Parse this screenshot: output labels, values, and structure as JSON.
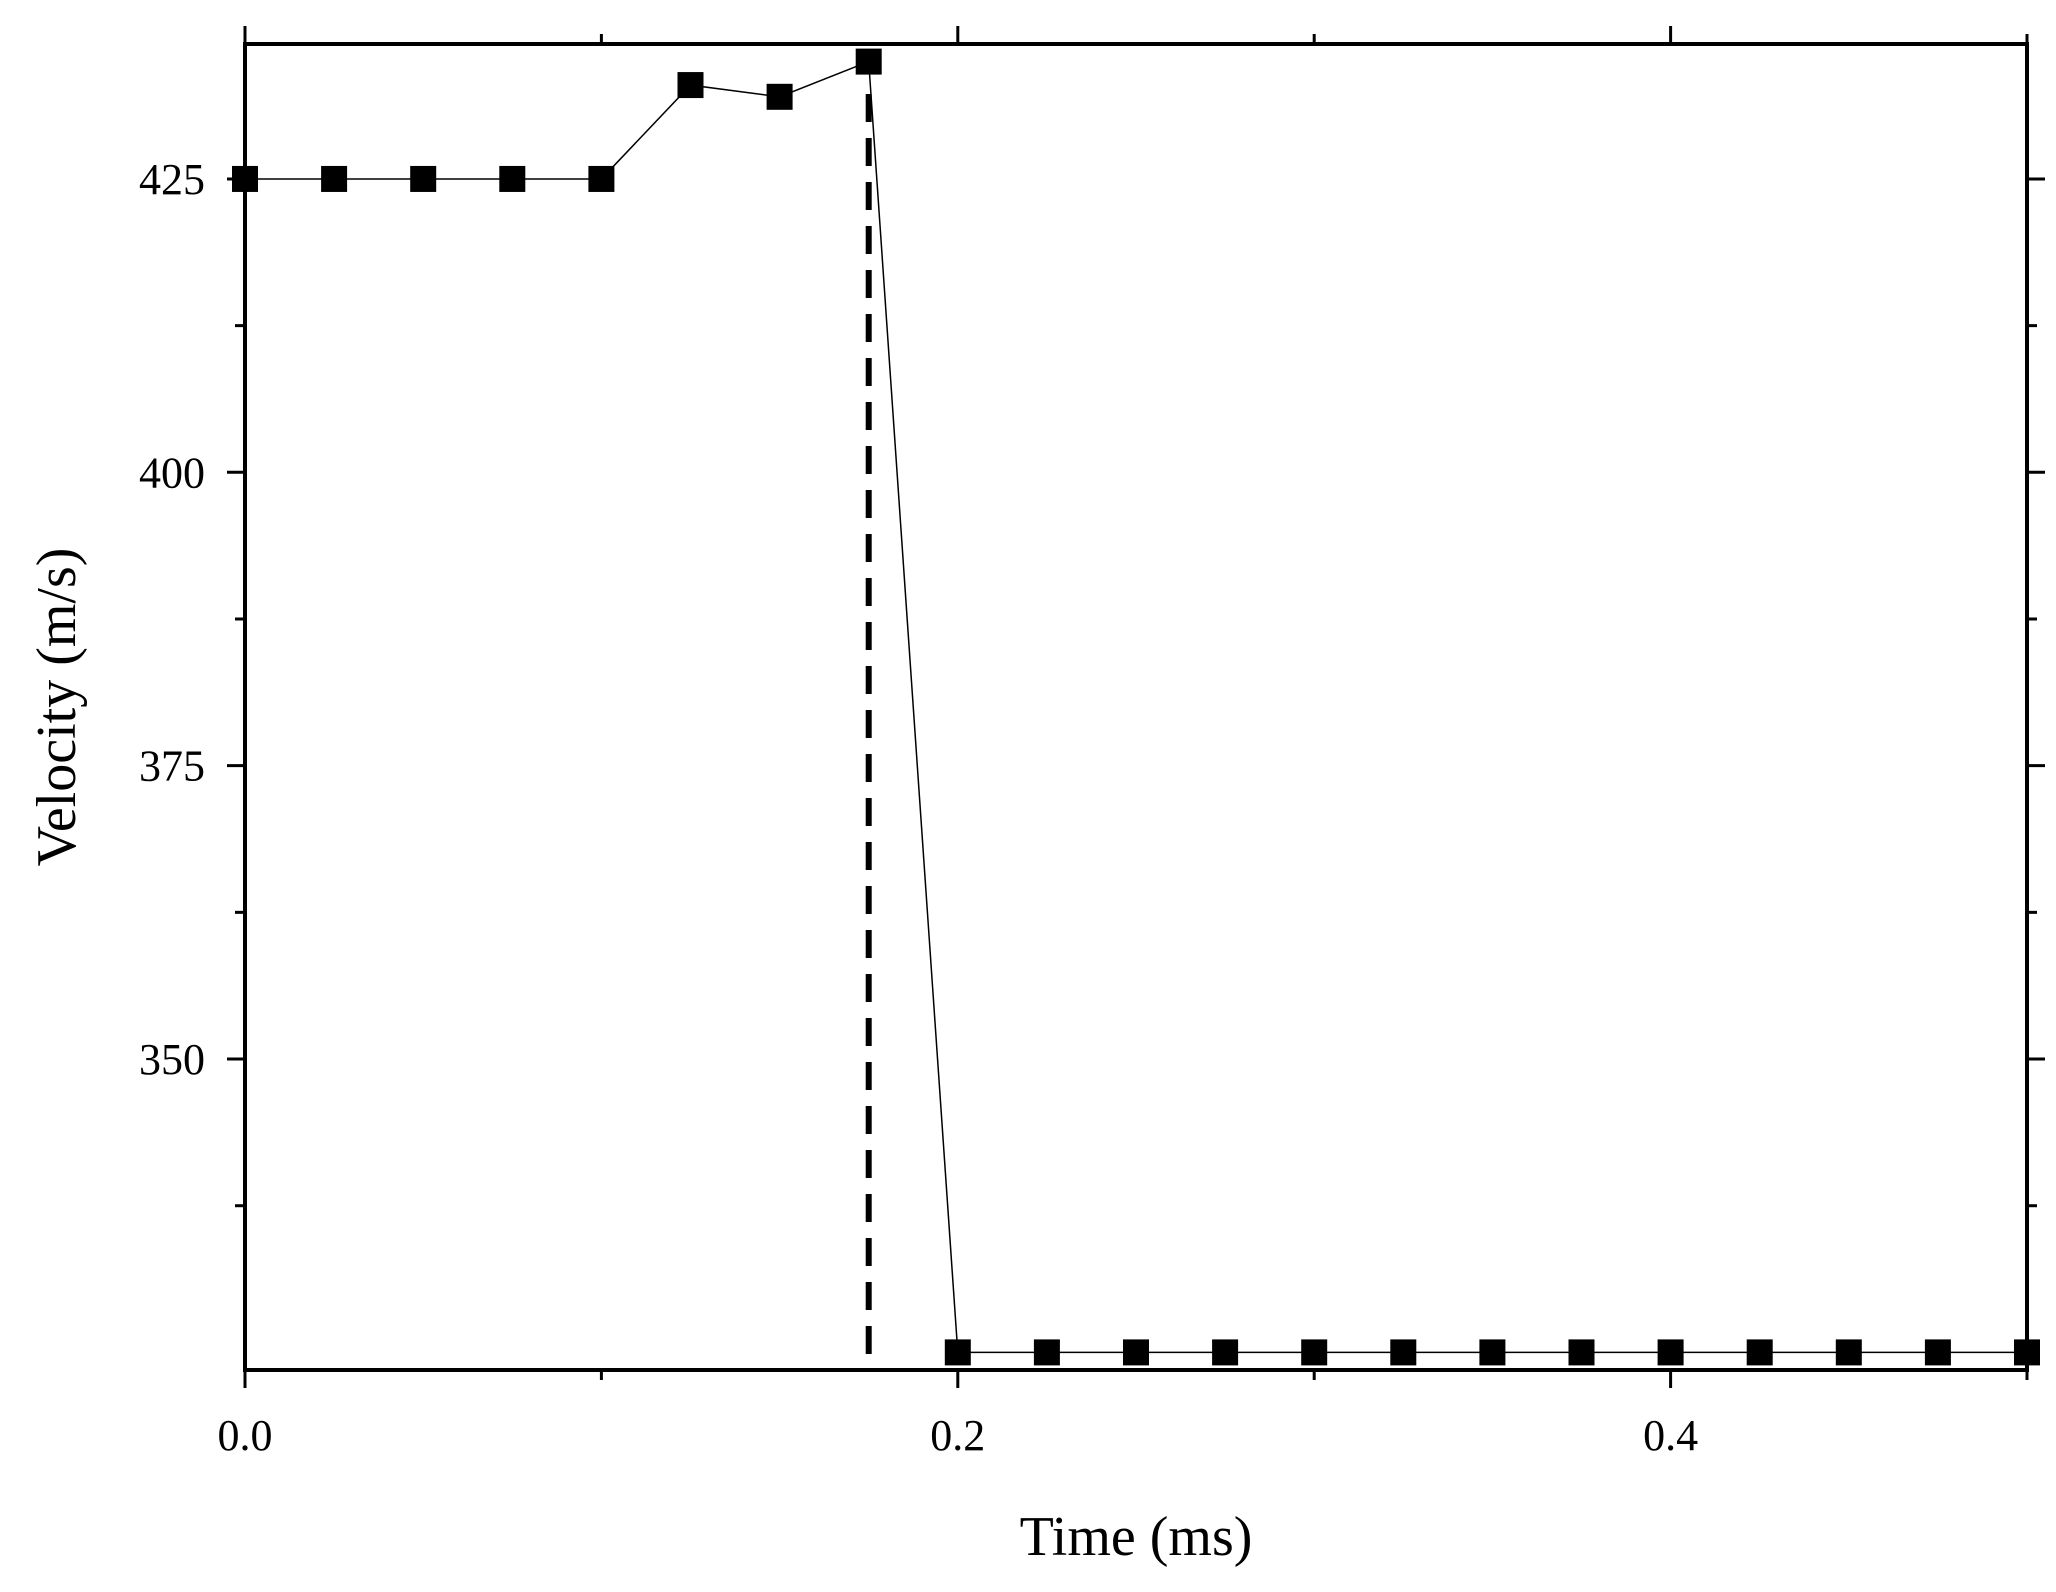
{
  "chart_data": {
    "type": "line",
    "title": "",
    "xlabel": "Time (ms)",
    "ylabel": "Velocity (m/s)",
    "xlim": [
      0.0,
      0.5
    ],
    "ylim": [
      323.5,
      436.5
    ],
    "x_ticks": [
      "0.0",
      "0.2",
      "0.4"
    ],
    "x_tick_values": [
      0.0,
      0.2,
      0.4
    ],
    "x_minor_tick_values": [
      0.1,
      0.3,
      0.5
    ],
    "y_ticks": [
      "350",
      "375",
      "400",
      "425"
    ],
    "y_tick_values": [
      350,
      375,
      400,
      425
    ],
    "y_minor_tick_values": [
      337.5,
      362.5,
      387.5,
      412.5
    ],
    "grid": false,
    "legend": "none",
    "marker": "square",
    "line_color": "#000000",
    "marker_color": "#000000",
    "series": [
      {
        "x": [
          0.0,
          0.025,
          0.05,
          0.075,
          0.1,
          0.125,
          0.15,
          0.175,
          0.2,
          0.225,
          0.25,
          0.275,
          0.3,
          0.325,
          0.35,
          0.375,
          0.4,
          0.425,
          0.45,
          0.475,
          0.5
        ],
        "y": [
          425,
          425,
          425,
          425,
          425,
          433,
          432,
          435,
          325,
          325,
          325,
          325,
          325,
          325,
          325,
          325,
          325,
          325,
          325,
          325,
          325
        ]
      }
    ],
    "reference_lines": [
      {
        "orientation": "vertical",
        "x": 0.175,
        "style": "dashed"
      }
    ]
  }
}
